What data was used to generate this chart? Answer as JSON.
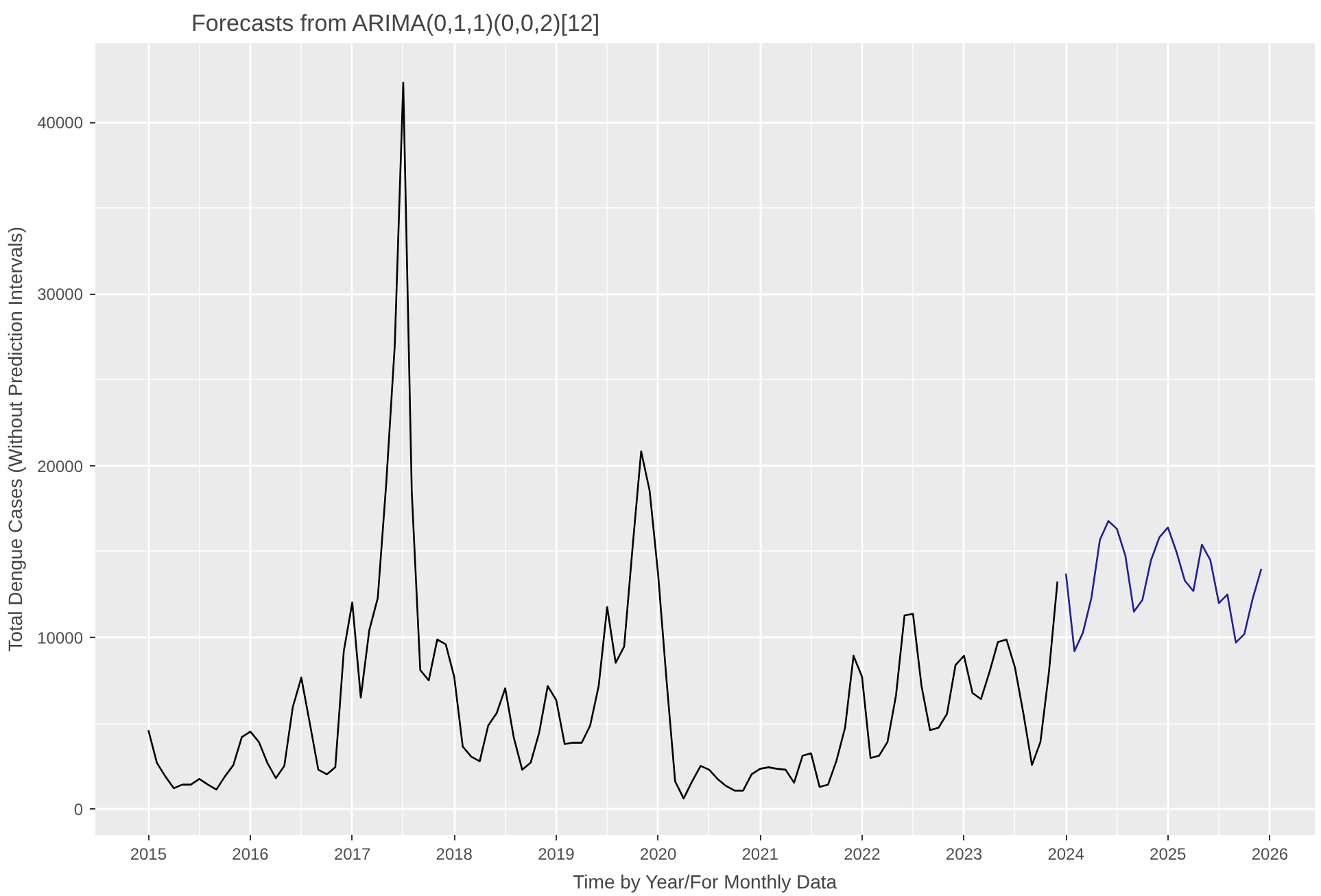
{
  "chart_data": {
    "type": "line",
    "title": "Forecasts from ARIMA(0,1,1)(0,0,2)[12]",
    "xlabel": "Time by Year/For Monthly Data",
    "ylabel": "Total Dengue Cases (Without Prediction Intervals)",
    "xlim": [
      "2014-06-24",
      "2026-06-10"
    ],
    "xticks": [
      {
        "value": "2015-01",
        "label": "2015"
      },
      {
        "value": "2016-01",
        "label": "2016"
      },
      {
        "value": "2017-01",
        "label": "2017"
      },
      {
        "value": "2018-01",
        "label": "2018"
      },
      {
        "value": "2019-01",
        "label": "2019"
      },
      {
        "value": "2020-01",
        "label": "2020"
      },
      {
        "value": "2021-01",
        "label": "2021"
      },
      {
        "value": "2022-01",
        "label": "2022"
      },
      {
        "value": "2023-01",
        "label": "2023"
      },
      {
        "value": "2024-01",
        "label": "2024"
      },
      {
        "value": "2025-01",
        "label": "2025"
      },
      {
        "value": "2026-01",
        "label": "2026"
      }
    ],
    "ylim": [
      -1500,
      44600
    ],
    "yticks": [
      0,
      10000,
      20000,
      30000,
      40000
    ],
    "grid": true,
    "marker": "none",
    "line_style": "solid",
    "series": [
      {
        "color": "#000000",
        "x": [
          "2015-01",
          "2015-02",
          "2015-03",
          "2015-04",
          "2015-05",
          "2015-06",
          "2015-07",
          "2015-08",
          "2015-09",
          "2015-10",
          "2015-11",
          "2015-12",
          "2016-01",
          "2016-02",
          "2016-03",
          "2016-04",
          "2016-05",
          "2016-06",
          "2016-07",
          "2016-08",
          "2016-09",
          "2016-10",
          "2016-11",
          "2016-12",
          "2017-01",
          "2017-02",
          "2017-03",
          "2017-04",
          "2017-05",
          "2017-06",
          "2017-07",
          "2017-08",
          "2017-09",
          "2017-10",
          "2017-11",
          "2017-12",
          "2018-01",
          "2018-02",
          "2018-03",
          "2018-04",
          "2018-05",
          "2018-06",
          "2018-07",
          "2018-08",
          "2018-09",
          "2018-10",
          "2018-11",
          "2018-12",
          "2019-01",
          "2019-02",
          "2019-03",
          "2019-04",
          "2019-05",
          "2019-06",
          "2019-07",
          "2019-08",
          "2019-09",
          "2019-10",
          "2019-11",
          "2019-12",
          "2020-01",
          "2020-02",
          "2020-03",
          "2020-04",
          "2020-05",
          "2020-06",
          "2020-07",
          "2020-08",
          "2020-09",
          "2020-10",
          "2020-11",
          "2020-12",
          "2021-01",
          "2021-02",
          "2021-03",
          "2021-04",
          "2021-05",
          "2021-06",
          "2021-07",
          "2021-08",
          "2021-09",
          "2021-10",
          "2021-11",
          "2021-12",
          "2022-01",
          "2022-02",
          "2022-03",
          "2022-04",
          "2022-05",
          "2022-06",
          "2022-07",
          "2022-08",
          "2022-09",
          "2022-10",
          "2022-11",
          "2022-12",
          "2023-01",
          "2023-02",
          "2023-03",
          "2023-04",
          "2023-05",
          "2023-06",
          "2023-07",
          "2023-08",
          "2023-09",
          "2023-10",
          "2023-11",
          "2023-12"
        ],
        "values": [
          4600,
          2700,
          1900,
          1220,
          1430,
          1430,
          1760,
          1430,
          1140,
          1900,
          2570,
          4200,
          4520,
          3920,
          2700,
          1810,
          2520,
          5950,
          7660,
          5000,
          2300,
          2030,
          2440,
          9200,
          12040,
          6500,
          10420,
          12300,
          19000,
          27000,
          42300,
          18500,
          8100,
          7500,
          9880,
          9600,
          7700,
          3650,
          3060,
          2790,
          4870,
          5600,
          7040,
          4190,
          2300,
          2710,
          4460,
          7170,
          6360,
          3790,
          3870,
          3870,
          4870,
          7170,
          11770,
          8520,
          9470,
          15290,
          20840,
          18540,
          13670,
          7440,
          1620,
          620,
          1620,
          2520,
          2300,
          1760,
          1350,
          1080,
          1080,
          2030,
          2350,
          2440,
          2350,
          2300,
          1540,
          3110,
          3250,
          1300,
          1430,
          2840,
          4740,
          8930,
          7710,
          2980,
          3110,
          3920,
          6630,
          11280,
          11370,
          7170,
          4600,
          4740,
          5550,
          8390,
          8930,
          6770,
          6410,
          7980,
          9740,
          9880,
          8250,
          5550,
          2570,
          3920,
          7980,
          13260
        ]
      },
      {
        "color": "#1f1f9a",
        "x": [
          "2024-01",
          "2024-02",
          "2024-03",
          "2024-04",
          "2024-05",
          "2024-06",
          "2024-07",
          "2024-08",
          "2024-09",
          "2024-10",
          "2024-11",
          "2024-12",
          "2025-01",
          "2025-02",
          "2025-03",
          "2025-04",
          "2025-05",
          "2025-06",
          "2025-07",
          "2025-08",
          "2025-09",
          "2025-10",
          "2025-11",
          "2025-12"
        ],
        "values": [
          13720,
          9200,
          10280,
          12310,
          15690,
          16780,
          16320,
          14750,
          11500,
          12180,
          14480,
          15830,
          16400,
          15000,
          13300,
          12700,
          15400,
          14500,
          12000,
          12500,
          9700,
          10200,
          12300,
          14000
        ]
      }
    ]
  }
}
